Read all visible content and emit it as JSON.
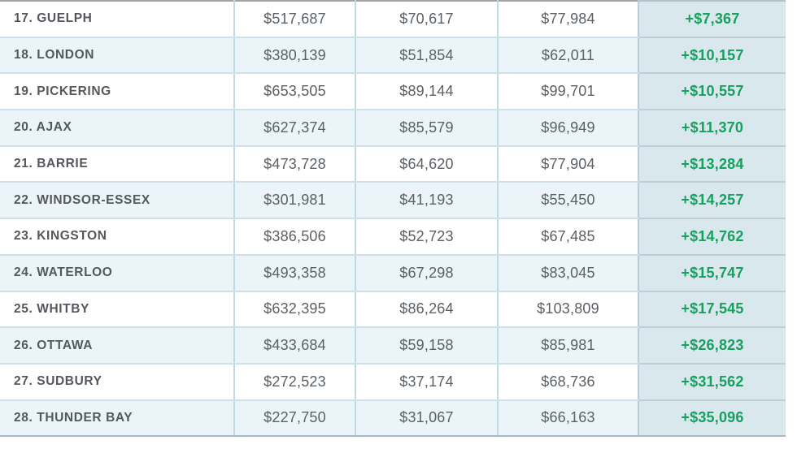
{
  "table": {
    "rows": [
      {
        "label": "17. GUELPH",
        "v1": "$517,687",
        "v2": "$70,617",
        "v3": "$77,984",
        "diff": "+$7,367"
      },
      {
        "label": "18. LONDON",
        "v1": "$380,139",
        "v2": "$51,854",
        "v3": "$62,011",
        "diff": "+$10,157"
      },
      {
        "label": "19. PICKERING",
        "v1": "$653,505",
        "v2": "$89,144",
        "v3": "$99,701",
        "diff": "+$10,557"
      },
      {
        "label": "20. AJAX",
        "v1": "$627,374",
        "v2": "$85,579",
        "v3": "$96,949",
        "diff": "+$11,370"
      },
      {
        "label": "21. BARRIE",
        "v1": "$473,728",
        "v2": "$64,620",
        "v3": "$77,904",
        "diff": "+$13,284"
      },
      {
        "label": "22. WINDSOR-ESSEX",
        "v1": "$301,981",
        "v2": "$41,193",
        "v3": "$55,450",
        "diff": "+$14,257"
      },
      {
        "label": "23. KINGSTON",
        "v1": "$386,506",
        "v2": "$52,723",
        "v3": "$67,485",
        "diff": "+$14,762"
      },
      {
        "label": "24. WATERLOO",
        "v1": "$493,358",
        "v2": "$67,298",
        "v3": "$83,045",
        "diff": "+$15,747"
      },
      {
        "label": "25. WHITBY",
        "v1": "$632,395",
        "v2": "$86,264",
        "v3": "$103,809",
        "diff": "+$17,545"
      },
      {
        "label": "26. OTTAWA",
        "v1": "$433,684",
        "v2": "$59,158",
        "v3": "$85,981",
        "diff": "+$26,823"
      },
      {
        "label": "27. SUDBURY",
        "v1": "$272,523",
        "v2": "$37,174",
        "v3": "$68,736",
        "diff": "+$31,562"
      },
      {
        "label": "28. THUNDER BAY",
        "v1": "$227,750",
        "v2": "$31,067",
        "v3": "$66,163",
        "diff": "+$35,096"
      }
    ]
  },
  "colors": {
    "stripe_row": "#ebf5f9",
    "diff_column_bg": "#d9e8ec",
    "diff_text_green": "#17a05f",
    "body_text": "#5b6065",
    "city_text": "#54585c",
    "grid_blue": "#bedbe5"
  },
  "chart_data": {
    "type": "table",
    "columns": [
      "rank_city",
      "value_col_2",
      "value_col_3",
      "value_col_4",
      "difference"
    ],
    "rows": [
      [
        "17. GUELPH",
        "$517,687",
        "$70,617",
        "$77,984",
        "+$7,367"
      ],
      [
        "18. LONDON",
        "$380,139",
        "$51,854",
        "$62,011",
        "+$10,157"
      ],
      [
        "19. PICKERING",
        "$653,505",
        "$89,144",
        "$99,701",
        "+$10,557"
      ],
      [
        "20. AJAX",
        "$627,374",
        "$85,579",
        "$96,949",
        "+$11,370"
      ],
      [
        "21. BARRIE",
        "$473,728",
        "$64,620",
        "$77,904",
        "+$13,284"
      ],
      [
        "22. WINDSOR-ESSEX",
        "$301,981",
        "$41,193",
        "$55,450",
        "+$14,257"
      ],
      [
        "23. KINGSTON",
        "$386,506",
        "$52,723",
        "$67,485",
        "+$14,762"
      ],
      [
        "24. WATERLOO",
        "$493,358",
        "$67,298",
        "$83,045",
        "+$15,747"
      ],
      [
        "25. WHITBY",
        "$632,395",
        "$86,264",
        "$103,809",
        "+$17,545"
      ],
      [
        "26. OTTAWA",
        "$433,684",
        "$59,158",
        "$85,981",
        "+$26,823"
      ],
      [
        "27. SUDBURY",
        "$272,523",
        "$37,174",
        "$68,736",
        "+$31,562"
      ],
      [
        "28. THUNDER BAY",
        "$227,750",
        "$31,067",
        "$66,163",
        "+$35,096"
      ]
    ],
    "layout": "no header row visible (cropped); rows ranked 17-28; last column highlighted teal with bold green positive values; alternating white / pale-blue row stripes"
  }
}
